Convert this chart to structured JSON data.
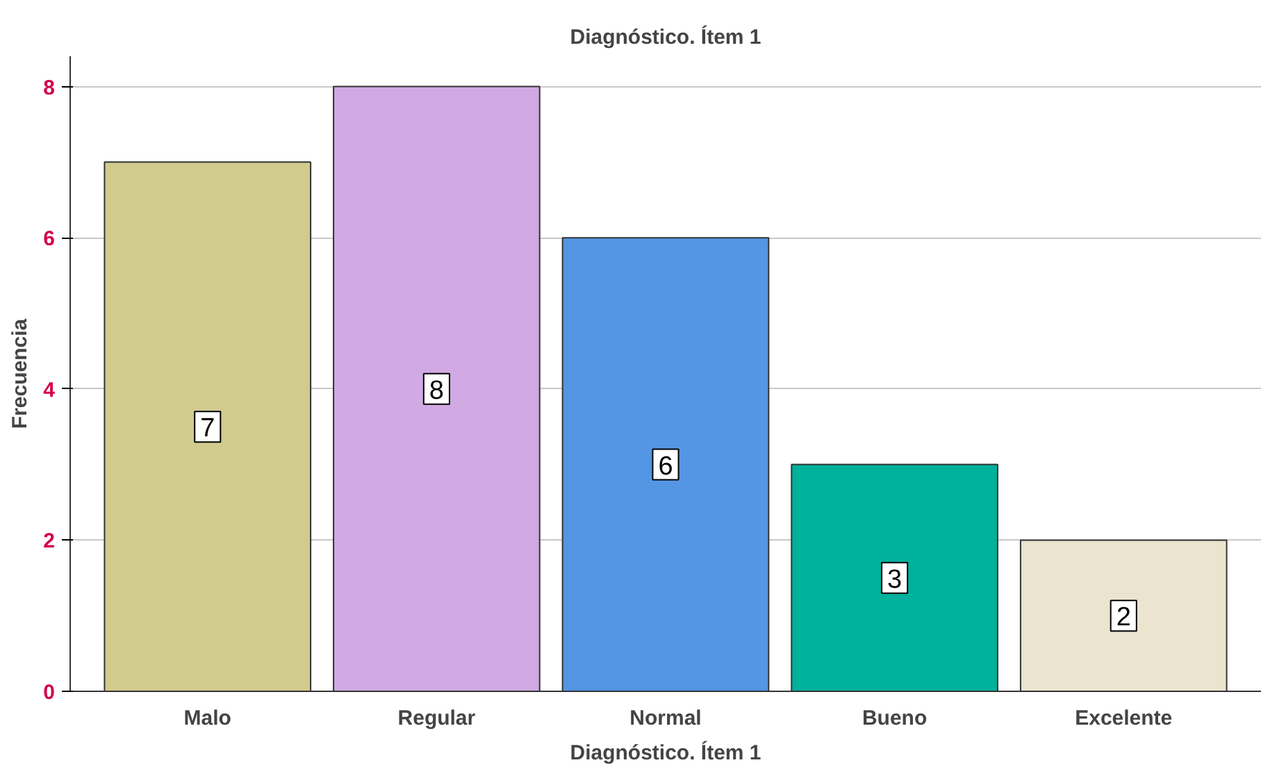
{
  "chart_data": {
    "type": "bar",
    "title": "Diagnóstico. Ítem 1",
    "xlabel": "Diagnóstico. Ítem 1",
    "ylabel": "Frecuencia",
    "categories": [
      "Malo",
      "Regular",
      "Normal",
      "Bueno",
      "Excelente"
    ],
    "values": [
      7,
      8,
      6,
      3,
      2
    ],
    "colors": [
      "#d1cb8e",
      "#d1a9e3",
      "#5496e4",
      "#00b19c",
      "#ebe4cf"
    ],
    "ylim": [
      0,
      8.4
    ],
    "yticks": [
      0,
      2,
      4,
      6,
      8
    ],
    "grid": "y",
    "data_labels": true
  }
}
